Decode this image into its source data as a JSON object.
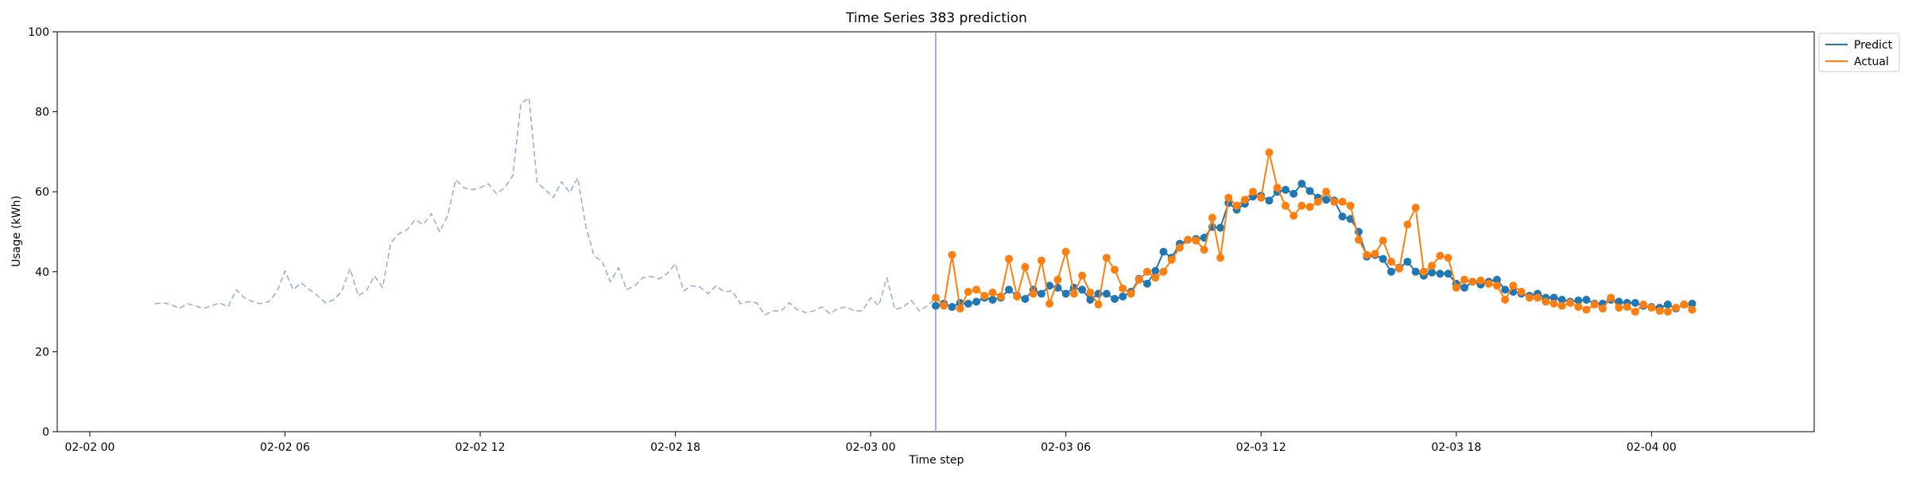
{
  "chart_data": {
    "type": "line",
    "title": "Time Series 383 prediction",
    "xlabel": "Time step",
    "ylabel": "Usage (kWh)",
    "ylim": [
      0,
      100
    ],
    "yticks": [
      0,
      20,
      40,
      60,
      80,
      100
    ],
    "x_unit": "datetime",
    "xlim": [
      "2022-02-01T23:00",
      "2022-02-04T05:00"
    ],
    "xticks": [
      {
        "t": "2022-02-02T00:00",
        "label": "02-02 00"
      },
      {
        "t": "2022-02-02T06:00",
        "label": "02-02 06"
      },
      {
        "t": "2022-02-02T12:00",
        "label": "02-02 12"
      },
      {
        "t": "2022-02-02T18:00",
        "label": "02-02 18"
      },
      {
        "t": "2022-02-03T00:00",
        "label": "02-03 00"
      },
      {
        "t": "2022-02-03T06:00",
        "label": "02-03 06"
      },
      {
        "t": "2022-02-03T12:00",
        "label": "02-03 12"
      },
      {
        "t": "2022-02-03T18:00",
        "label": "02-03 18"
      },
      {
        "t": "2022-02-04T00:00",
        "label": "02-04 00"
      }
    ],
    "step_minutes": 15,
    "grid": false,
    "legend_position": "top-right, outside plot",
    "forecast_start": "2022-02-03T02:00",
    "series": [
      {
        "key": "history",
        "style": "dashed",
        "color": "#9bb0d0",
        "start": "2022-02-02T02:00",
        "values": [
          32,
          32.2,
          31.8,
          30.8,
          32,
          31.5,
          30.8,
          31.5,
          32.2,
          31.2,
          35.5,
          33.5,
          32.5,
          32,
          32.5,
          35,
          40.2,
          35.5,
          37.2,
          35.5,
          34,
          32.2,
          33,
          35.2,
          40.8,
          34,
          35.2,
          39,
          36,
          47.2,
          49.5,
          50.5,
          53,
          51.8,
          54.5,
          50,
          54,
          63,
          61,
          60.5,
          61,
          62,
          59.5,
          61,
          64,
          82,
          83.5,
          62.2,
          60.5,
          58.5,
          62.5,
          59.8,
          63.5,
          51.2,
          44,
          42.5,
          37.5,
          41,
          35.5,
          36.5,
          38.5,
          38.8,
          38.2,
          39.5,
          42,
          35.2,
          36.5,
          36.2,
          34.5,
          36.5,
          35,
          35.2,
          32,
          32.5,
          32.2,
          29.2,
          30.2,
          30.2,
          32.2,
          30.5,
          29.8,
          30.2,
          31.2,
          29.5,
          30.8,
          31.2,
          30.2,
          30.2,
          33.5,
          31.5,
          38.5,
          30.5,
          31.2,
          32.8,
          30.2,
          31.5,
          33.5
        ]
      },
      {
        "key": "predict",
        "name": "Predict",
        "style": "solid-markers",
        "color": "#1f77b4",
        "start": "2022-02-03T02:00",
        "values": [
          31.5,
          32,
          31.2,
          32.2,
          32,
          32.5,
          33.5,
          33,
          33.5,
          35.5,
          34,
          33.2,
          35.5,
          34.5,
          36.5,
          36,
          34.5,
          36,
          35.5,
          33,
          34.5,
          34.5,
          33.2,
          33.8,
          35,
          38.2,
          37,
          40.2,
          45,
          43.5,
          47,
          48,
          48.2,
          48.5,
          51.2,
          51,
          57.2,
          55.5,
          57,
          58.8,
          59,
          57.8,
          60,
          60.5,
          59.5,
          62,
          60.2,
          58.5,
          58,
          57.8,
          53.8,
          53.2,
          50,
          43.8,
          44.2,
          43.2,
          40,
          41,
          42.5,
          40,
          39,
          39.8,
          39.5,
          39.5,
          37,
          36,
          37.5,
          36.8,
          37.5,
          38,
          35.5,
          35,
          34.5,
          34,
          34.5,
          33.5,
          33.5,
          33,
          32.5,
          32.8,
          33,
          32,
          32,
          33,
          32.5,
          32.2,
          32.2,
          31.5,
          31.2,
          31,
          31.8,
          30.8,
          31.8,
          32
        ]
      },
      {
        "key": "actual",
        "name": "Actual",
        "style": "solid-markers",
        "color": "#ff7f0e",
        "start": "2022-02-03T02:00",
        "values": [
          33.5,
          31.5,
          44.2,
          30.8,
          35,
          35.5,
          34,
          34.8,
          33.8,
          43.2,
          33.8,
          41.2,
          34.5,
          42.8,
          32,
          38,
          45,
          34.5,
          39,
          34.8,
          31.8,
          43.5,
          40.5,
          35.8,
          34.5,
          38,
          40,
          38.5,
          40,
          43,
          46,
          48,
          47.8,
          45.5,
          53.5,
          43.5,
          58.5,
          56.5,
          58,
          60,
          58.5,
          69.8,
          61,
          56.5,
          54,
          56.5,
          56.2,
          57.5,
          60,
          57.5,
          57.5,
          56.5,
          48,
          44.2,
          44.5,
          47.8,
          42.5,
          40.8,
          51.8,
          56,
          40,
          41.5,
          44,
          43.5,
          36,
          38,
          37.5,
          37.8,
          37,
          36.5,
          33,
          36.5,
          35,
          33.5,
          33.5,
          32.5,
          32,
          31.5,
          32.2,
          31.2,
          30.5,
          31.8,
          30.8,
          33.5,
          31,
          31.2,
          30,
          31.8,
          31,
          30.2,
          30,
          31,
          31.8,
          30.5
        ]
      }
    ],
    "legend": [
      {
        "label": "Predict",
        "color": "#1f77b4"
      },
      {
        "label": "Actual",
        "color": "#ff7f0e"
      }
    ]
  }
}
